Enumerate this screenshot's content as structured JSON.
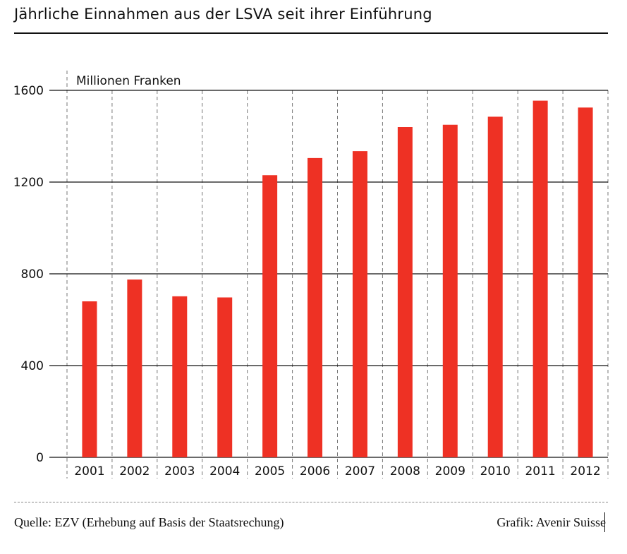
{
  "header": {
    "title": "Jährliche Einnahmen aus der LSVA seit ihrer Einführung"
  },
  "footer": {
    "source": "Quelle: EZV (Erhebung auf Basis der Staatsrechung)",
    "credit": "Grafik: Avenir Suisse"
  },
  "colors": {
    "bar": "#ee3124",
    "grid": "#111111",
    "divider": "#777777"
  },
  "chart_data": {
    "type": "bar",
    "title": "Jährliche Einnahmen aus der LSVA seit ihrer Einführung",
    "ylabel": "Millionen Franken",
    "xlabel": "",
    "categories": [
      "2001",
      "2002",
      "2003",
      "2004",
      "2005",
      "2006",
      "2007",
      "2008",
      "2009",
      "2010",
      "2011",
      "2012"
    ],
    "values": [
      680,
      775,
      702,
      697,
      1230,
      1305,
      1335,
      1440,
      1450,
      1485,
      1555,
      1525
    ],
    "ylim": [
      0,
      1600
    ],
    "yticks": [
      "0",
      "400",
      "800",
      "1200",
      "1600"
    ],
    "grid": true
  }
}
